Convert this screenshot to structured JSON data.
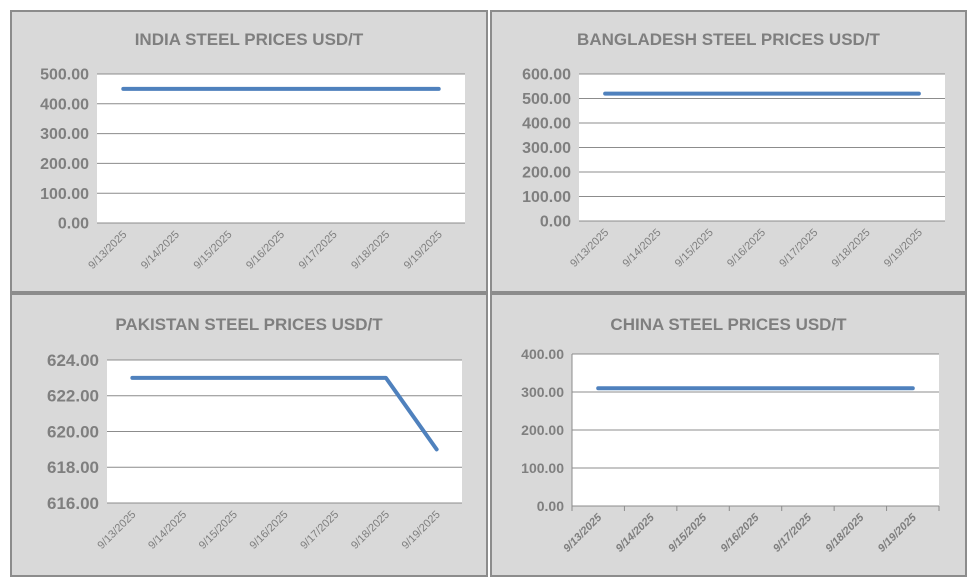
{
  "chart_data": [
    {
      "type": "line",
      "title": "INDIA STEEL PRICES USD/T",
      "categories": [
        "9/13/2025",
        "9/14/2025",
        "9/15/2025",
        "9/16/2025",
        "9/17/2025",
        "9/18/2025",
        "9/19/2025"
      ],
      "values": [
        450,
        450,
        450,
        450,
        450,
        450,
        450
      ],
      "ylim": [
        0,
        500
      ],
      "yticks": [
        "0.00",
        "100.00",
        "200.00",
        "300.00",
        "400.00",
        "500.00"
      ],
      "grid": true,
      "line_color": "#4f81bd"
    },
    {
      "type": "line",
      "title": "BANGLADESH STEEL PRICES USD/T",
      "categories": [
        "9/13/2025",
        "9/14/2025",
        "9/15/2025",
        "9/16/2025",
        "9/17/2025",
        "9/18/2025",
        "9/19/2025"
      ],
      "values": [
        520,
        520,
        520,
        520,
        520,
        520,
        520
      ],
      "ylim": [
        0,
        600
      ],
      "yticks": [
        "0.00",
        "100.00",
        "200.00",
        "300.00",
        "400.00",
        "500.00",
        "600.00"
      ],
      "grid": true,
      "line_color": "#4f81bd"
    },
    {
      "type": "line",
      "title": "PAKISTAN STEEL PRICES USD/T",
      "categories": [
        "9/13/2025",
        "9/14/2025",
        "9/15/2025",
        "9/16/2025",
        "9/17/2025",
        "9/18/2025",
        "9/19/2025"
      ],
      "values": [
        623,
        623,
        623,
        623,
        623,
        623,
        619
      ],
      "ylim": [
        616,
        624
      ],
      "yticks": [
        "616.00",
        "618.00",
        "620.00",
        "622.00",
        "624.00"
      ],
      "grid": true,
      "line_color": "#4f81bd"
    },
    {
      "type": "line",
      "title": "CHINA STEEL PRICES USD/T",
      "categories": [
        "9/13/2025",
        "9/14/2025",
        "9/15/2025",
        "9/16/2025",
        "9/17/2025",
        "9/18/2025",
        "9/19/2025"
      ],
      "values": [
        310,
        310,
        310,
        310,
        310,
        310,
        310
      ],
      "ylim": [
        0,
        400
      ],
      "yticks": [
        "0.00",
        "100.00",
        "200.00",
        "300.00",
        "400.00"
      ],
      "grid": true,
      "line_color": "#4f81bd"
    }
  ]
}
